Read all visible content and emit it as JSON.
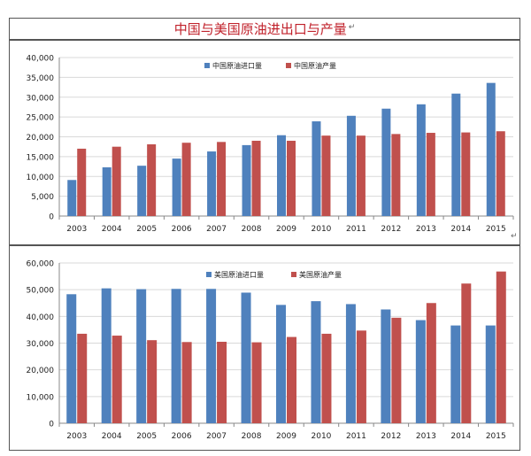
{
  "page_title": "中国与美国原油进出口与产量",
  "return_mark": "↵",
  "colors": {
    "import": "#4f81bd",
    "production": "#c0504d",
    "grid": "#d9d9d9",
    "axis": "#888888",
    "title": "#c0202a"
  },
  "chart_data": [
    {
      "type": "bar",
      "categories": [
        "2003",
        "2004",
        "2005",
        "2006",
        "2007",
        "2008",
        "2009",
        "2010",
        "2011",
        "2012",
        "2013",
        "2014",
        "2015"
      ],
      "ylim": [
        0,
        40000
      ],
      "yticks": [
        "0",
        "5,000",
        "10,000",
        "15,000",
        "20,000",
        "25,000",
        "30,000",
        "35,000",
        "40,000"
      ],
      "legend_position": "top-center",
      "grid": true,
      "series": [
        {
          "name": "中国原油进口量",
          "color": "#4f81bd",
          "values": [
            9100,
            12300,
            12700,
            14500,
            16300,
            17900,
            20400,
            23900,
            25300,
            27100,
            28200,
            30900,
            33600
          ]
        },
        {
          "name": "中国原油产量",
          "color": "#c0504d",
          "values": [
            17000,
            17500,
            18100,
            18500,
            18700,
            19000,
            19000,
            20300,
            20300,
            20700,
            21000,
            21100,
            21400
          ]
        }
      ]
    },
    {
      "type": "bar",
      "categories": [
        "2003",
        "2004",
        "2005",
        "2006",
        "2007",
        "2008",
        "2009",
        "2010",
        "2011",
        "2012",
        "2013",
        "2014",
        "2015"
      ],
      "ylim": [
        0,
        60000
      ],
      "yticks": [
        "0",
        "10,000",
        "20,000",
        "30,000",
        "40,000",
        "50,000",
        "60,000"
      ],
      "legend_position": "top-center",
      "grid": true,
      "series": [
        {
          "name": "美国原油进口量",
          "color": "#4f81bd",
          "values": [
            48300,
            50500,
            50200,
            50300,
            50300,
            48900,
            44300,
            45700,
            44600,
            42600,
            38600,
            36600,
            36600
          ]
        },
        {
          "name": "美国原油产量",
          "color": "#c0504d",
          "values": [
            33500,
            32800,
            31100,
            30400,
            30500,
            30300,
            32300,
            33500,
            34700,
            39500,
            45000,
            52300,
            56800
          ]
        }
      ]
    }
  ]
}
